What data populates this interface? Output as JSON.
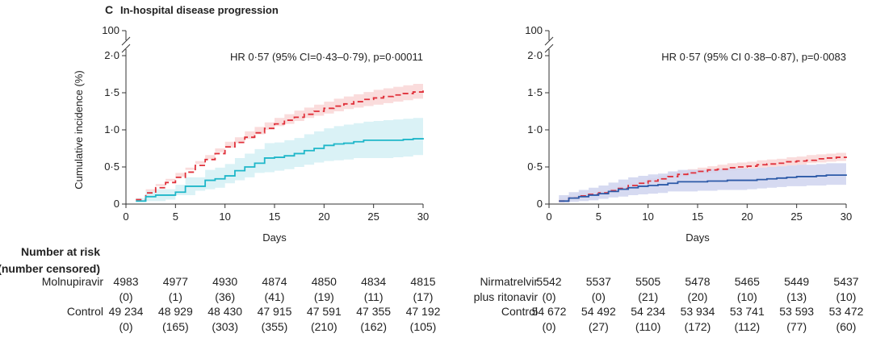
{
  "panel_letter": "C",
  "panel_title": "In-hospital disease progression",
  "colors": {
    "control": "#e0303a",
    "control_band": "#f9d6d6",
    "molnupiravir": "#1fb7c9",
    "molnupiravir_band": "#d4f0f5",
    "nirmatrelvir": "#2d5aa8",
    "nirmatrelvir_band": "#cfd4ee",
    "axis": "#333333"
  },
  "chart_data": [
    {
      "type": "line",
      "step": true,
      "xlabel": "Days",
      "ylabel": "Cumulative incidence (%)",
      "xlim": [
        0,
        30
      ],
      "ylim": [
        0,
        2.0
      ],
      "axis_break": true,
      "y_top_tick": "100",
      "x_ticks": [
        "0",
        "5",
        "10",
        "15",
        "20",
        "25",
        "30"
      ],
      "y_ticks": [
        "0",
        "0·5",
        "1·0",
        "1·5",
        "2·0"
      ],
      "annotation": "HR 0·57 (95% CI=0·43–0·79), p=0·00011",
      "series": [
        {
          "key": "control",
          "style": "dashed",
          "x": [
            1,
            2,
            3,
            4,
            5,
            6,
            7,
            8,
            9,
            10,
            11,
            12,
            13,
            14,
            15,
            16,
            17,
            18,
            19,
            20,
            21,
            22,
            23,
            24,
            25,
            26,
            27,
            28,
            29,
            30
          ],
          "y": [
            0.06,
            0.15,
            0.22,
            0.29,
            0.36,
            0.43,
            0.52,
            0.6,
            0.68,
            0.77,
            0.83,
            0.9,
            0.96,
            1.02,
            1.08,
            1.13,
            1.17,
            1.21,
            1.25,
            1.29,
            1.32,
            1.35,
            1.38,
            1.41,
            1.43,
            1.45,
            1.47,
            1.49,
            1.51,
            1.53
          ],
          "ci_lower": [
            0.02,
            0.1,
            0.17,
            0.24,
            0.31,
            0.37,
            0.46,
            0.54,
            0.61,
            0.7,
            0.76,
            0.82,
            0.88,
            0.94,
            1.0,
            1.05,
            1.08,
            1.12,
            1.16,
            1.19,
            1.22,
            1.25,
            1.28,
            1.3,
            1.32,
            1.34,
            1.36,
            1.38,
            1.4,
            1.42
          ],
          "ci_upper": [
            0.1,
            0.2,
            0.27,
            0.34,
            0.42,
            0.49,
            0.58,
            0.66,
            0.75,
            0.84,
            0.9,
            0.98,
            1.04,
            1.1,
            1.16,
            1.21,
            1.26,
            1.3,
            1.34,
            1.38,
            1.42,
            1.45,
            1.48,
            1.51,
            1.54,
            1.56,
            1.58,
            1.6,
            1.62,
            1.65
          ]
        },
        {
          "key": "molnupiravir",
          "style": "solid",
          "x": [
            1,
            2,
            3,
            4,
            5,
            6,
            7,
            8,
            9,
            10,
            11,
            12,
            13,
            14,
            15,
            16,
            17,
            18,
            19,
            20,
            21,
            22,
            23,
            24,
            25,
            26,
            27,
            28,
            29,
            30
          ],
          "y": [
            0.04,
            0.1,
            0.12,
            0.12,
            0.16,
            0.24,
            0.24,
            0.32,
            0.34,
            0.38,
            0.45,
            0.5,
            0.55,
            0.62,
            0.63,
            0.65,
            0.68,
            0.72,
            0.75,
            0.79,
            0.81,
            0.82,
            0.84,
            0.86,
            0.86,
            0.86,
            0.86,
            0.87,
            0.88,
            0.89
          ],
          "ci_lower": [
            0.0,
            0.03,
            0.04,
            0.04,
            0.06,
            0.12,
            0.12,
            0.18,
            0.2,
            0.22,
            0.28,
            0.32,
            0.36,
            0.42,
            0.43,
            0.45,
            0.47,
            0.5,
            0.53,
            0.56,
            0.58,
            0.59,
            0.6,
            0.62,
            0.62,
            0.62,
            0.62,
            0.63,
            0.64,
            0.66
          ],
          "ci_upper": [
            0.08,
            0.17,
            0.2,
            0.2,
            0.26,
            0.36,
            0.36,
            0.46,
            0.49,
            0.54,
            0.62,
            0.68,
            0.74,
            0.82,
            0.83,
            0.86,
            0.89,
            0.94,
            0.98,
            1.02,
            1.05,
            1.07,
            1.09,
            1.11,
            1.12,
            1.13,
            1.14,
            1.15,
            1.16,
            1.18
          ]
        }
      ]
    },
    {
      "type": "line",
      "step": true,
      "xlabel": "Days",
      "ylabel": "",
      "xlim": [
        0,
        30
      ],
      "ylim": [
        0,
        2.0
      ],
      "axis_break": true,
      "y_top_tick": "100",
      "x_ticks": [
        "0",
        "5",
        "10",
        "15",
        "20",
        "25",
        "30"
      ],
      "y_ticks": [
        "0",
        "0·5",
        "1·0",
        "1·5",
        "2·0"
      ],
      "annotation": "HR 0·57 (95% CI 0·38–0·87), p=0·0083",
      "series": [
        {
          "key": "control",
          "style": "dashed",
          "x": [
            1,
            2,
            3,
            4,
            5,
            6,
            7,
            8,
            9,
            10,
            11,
            12,
            13,
            14,
            15,
            16,
            17,
            18,
            19,
            20,
            21,
            22,
            23,
            24,
            25,
            26,
            27,
            28,
            29,
            30
          ],
          "y": [
            0.04,
            0.08,
            0.11,
            0.13,
            0.15,
            0.18,
            0.21,
            0.25,
            0.28,
            0.31,
            0.34,
            0.37,
            0.4,
            0.42,
            0.44,
            0.46,
            0.47,
            0.49,
            0.5,
            0.51,
            0.53,
            0.54,
            0.55,
            0.57,
            0.58,
            0.59,
            0.61,
            0.62,
            0.63,
            0.64
          ],
          "ci_lower": [
            0.01,
            0.05,
            0.08,
            0.1,
            0.12,
            0.15,
            0.18,
            0.21,
            0.24,
            0.27,
            0.3,
            0.32,
            0.35,
            0.37,
            0.39,
            0.41,
            0.42,
            0.44,
            0.45,
            0.46,
            0.48,
            0.49,
            0.5,
            0.51,
            0.52,
            0.53,
            0.55,
            0.56,
            0.57,
            0.58
          ],
          "ci_upper": [
            0.07,
            0.11,
            0.14,
            0.16,
            0.18,
            0.21,
            0.25,
            0.29,
            0.32,
            0.35,
            0.38,
            0.42,
            0.45,
            0.47,
            0.49,
            0.51,
            0.53,
            0.55,
            0.56,
            0.57,
            0.59,
            0.6,
            0.61,
            0.63,
            0.64,
            0.66,
            0.67,
            0.68,
            0.69,
            0.71
          ]
        },
        {
          "key": "nirmatrelvir",
          "style": "solid",
          "x": [
            1,
            2,
            3,
            4,
            5,
            6,
            7,
            8,
            9,
            10,
            11,
            12,
            13,
            14,
            15,
            16,
            17,
            18,
            19,
            20,
            21,
            22,
            23,
            24,
            25,
            26,
            27,
            28,
            29,
            30
          ],
          "y": [
            0.04,
            0.08,
            0.1,
            0.12,
            0.14,
            0.17,
            0.2,
            0.22,
            0.24,
            0.25,
            0.26,
            0.28,
            0.3,
            0.3,
            0.3,
            0.31,
            0.31,
            0.32,
            0.32,
            0.32,
            0.33,
            0.34,
            0.35,
            0.36,
            0.37,
            0.37,
            0.38,
            0.39,
            0.39,
            0.4
          ],
          "ci_lower": [
            0.0,
            0.02,
            0.03,
            0.04,
            0.05,
            0.07,
            0.09,
            0.1,
            0.12,
            0.13,
            0.14,
            0.15,
            0.17,
            0.17,
            0.17,
            0.18,
            0.18,
            0.19,
            0.19,
            0.19,
            0.2,
            0.21,
            0.22,
            0.23,
            0.24,
            0.24,
            0.25,
            0.25,
            0.26,
            0.26
          ],
          "ci_upper": [
            0.12,
            0.16,
            0.19,
            0.22,
            0.25,
            0.29,
            0.33,
            0.36,
            0.38,
            0.4,
            0.41,
            0.44,
            0.46,
            0.46,
            0.46,
            0.47,
            0.47,
            0.48,
            0.48,
            0.48,
            0.49,
            0.5,
            0.51,
            0.52,
            0.53,
            0.53,
            0.54,
            0.55,
            0.55,
            0.56
          ]
        }
      ]
    }
  ],
  "risk_table": {
    "title_lines": [
      "Number at risk",
      "(number censored)"
    ],
    "left": {
      "rows": [
        {
          "label_lines": [
            "Molnupiravir"
          ],
          "at_risk": [
            "4983",
            "4977",
            "4930",
            "4874",
            "4850",
            "4834",
            "4815"
          ],
          "censored": [
            "(0)",
            "(1)",
            "(36)",
            "(41)",
            "(19)",
            "(11)",
            "(17)"
          ]
        },
        {
          "label_lines": [
            "Control"
          ],
          "at_risk": [
            "49 234",
            "48 929",
            "48 430",
            "47 915",
            "47 591",
            "47 355",
            "47 192"
          ],
          "censored": [
            "(0)",
            "(165)",
            "(303)",
            "(355)",
            "(210)",
            "(162)",
            "(105)"
          ]
        }
      ]
    },
    "right": {
      "rows": [
        {
          "label_lines": [
            "Nirmatrelvir",
            "plus ritonavir"
          ],
          "at_risk": [
            "5542",
            "5537",
            "5505",
            "5478",
            "5465",
            "5449",
            "5437"
          ],
          "censored": [
            "(0)",
            "(0)",
            "(21)",
            "(20)",
            "(10)",
            "(13)",
            "(10)"
          ]
        },
        {
          "label_lines": [
            "Control"
          ],
          "at_risk": [
            "54 672",
            "54 492",
            "54 234",
            "53 934",
            "53 741",
            "53 593",
            "53 472"
          ],
          "censored": [
            "(0)",
            "(27)",
            "(110)",
            "(172)",
            "(112)",
            "(77)",
            "(60)"
          ]
        }
      ]
    }
  }
}
